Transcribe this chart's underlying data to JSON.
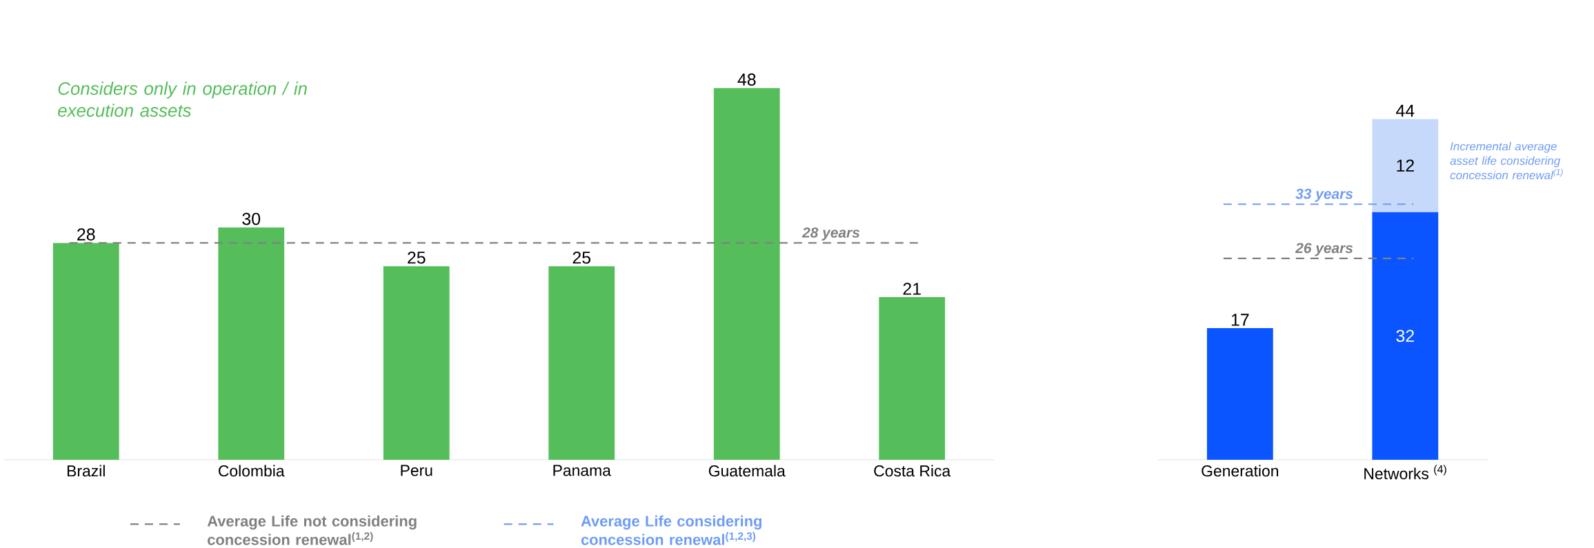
{
  "chart_data": [
    {
      "type": "bar",
      "categories": [
        "Brazil",
        "Colombia",
        "Peru",
        "Panama",
        "Guatemala",
        "Costa Rica"
      ],
      "values": [
        28,
        30,
        25,
        25,
        48,
        21
      ],
      "color": "#55be5a",
      "data_labels": true,
      "ref_lines": [
        {
          "axis": "y",
          "value": 28,
          "label": "28 years",
          "color": "#808080",
          "line_style": "dashed"
        }
      ],
      "annotations": [
        "Considers only in operation / in execution assets",
        "Average Life not considering concession renewal$^{(1,2)}$",
        "Average Life considering concession renewal$^{(1,2,3)}$"
      ]
    },
    {
      "type": "bar",
      "categories": [
        "Generation",
        "Networks $^{(4)}$"
      ],
      "stacked": true,
      "data_labels": true,
      "series": [
        {
          "color": "#0a55ff",
          "values": [
            17,
            32
          ]
        },
        {
          "color": "#c6d9fb",
          "values": [
            null,
            12
          ]
        }
      ],
      "totals": [
        null,
        "44"
      ],
      "ref_lines": [
        {
          "axis": "y",
          "value": 26,
          "label": "26 years",
          "color": "#808080",
          "line_style": "dashed"
        },
        {
          "axis": "y",
          "value": 33,
          "label": "33 years",
          "color": "#6f9cf5",
          "line_style": "dashed"
        }
      ],
      "annotations": [
        "Incremental average asset life considering concession renewal$^{(1)}$"
      ]
    }
  ]
}
